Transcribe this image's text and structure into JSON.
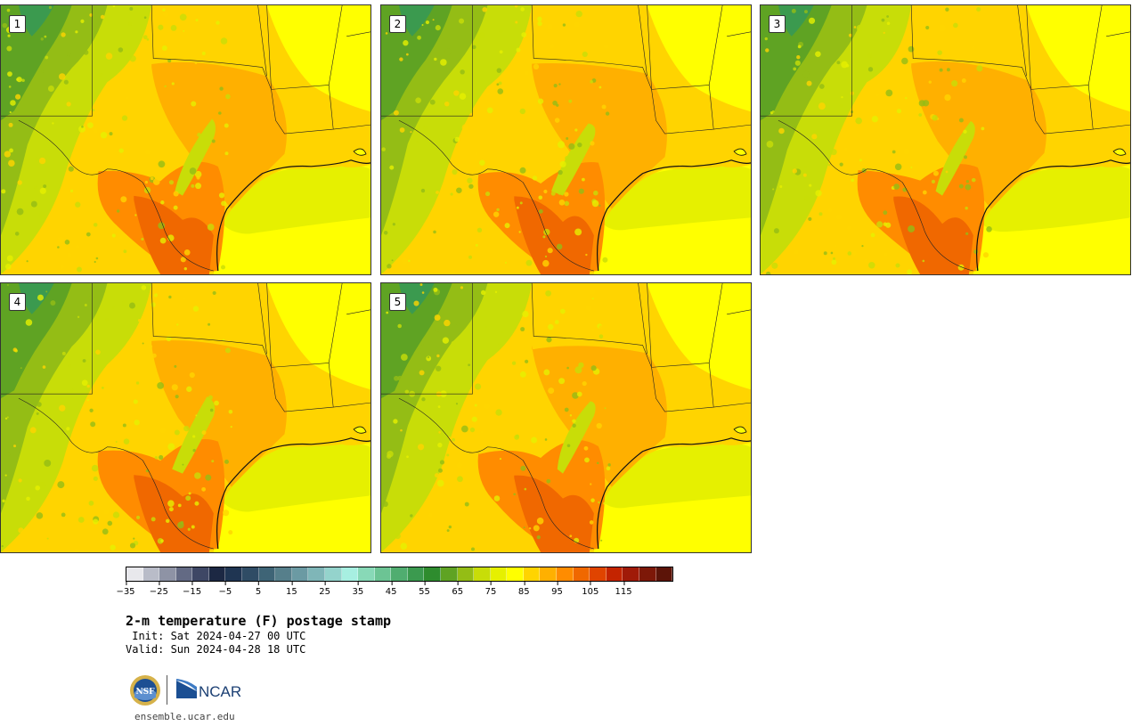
{
  "panels": [
    {
      "label": "1",
      "variant": 0
    },
    {
      "label": "2",
      "variant": 1
    },
    {
      "label": "3",
      "variant": 2
    },
    {
      "label": "4",
      "variant": 3
    },
    {
      "label": "5",
      "variant": 4
    }
  ],
  "colorbar": {
    "colors": [
      "#e8e8ec",
      "#b9bcc8",
      "#8e93a5",
      "#636a84",
      "#3e4765",
      "#1c2843",
      "#1f3552",
      "#2f4c65",
      "#3e6476",
      "#567f8b",
      "#6b9aa3",
      "#7fb6b8",
      "#94d3cc",
      "#a7efe1",
      "#88d9b7",
      "#6cc494",
      "#50ad70",
      "#3b9a4f",
      "#2e8c2e",
      "#5fa323",
      "#94bd15",
      "#c8dd08",
      "#e6f000",
      "#ffff00",
      "#ffd400",
      "#ffb000",
      "#ff8c00",
      "#f06800",
      "#e04400",
      "#c42400",
      "#a01a08",
      "#7d1808",
      "#5c1408"
    ],
    "tick_labels": [
      "−35",
      "−25",
      "−15",
      "−5",
      "5",
      "15",
      "25",
      "35",
      "45",
      "55",
      "65",
      "75",
      "85",
      "95",
      "105",
      "115"
    ]
  },
  "title": "2-m temperature (F) postage stamp",
  "init": " Init: Sat 2024-04-27 00 UTC",
  "valid": "Valid: Sun 2024-04-28 18 UTC",
  "logos": {
    "nsf": "NSF",
    "ncar": "NCAR"
  },
  "site": "ensemble.ucar.edu"
}
